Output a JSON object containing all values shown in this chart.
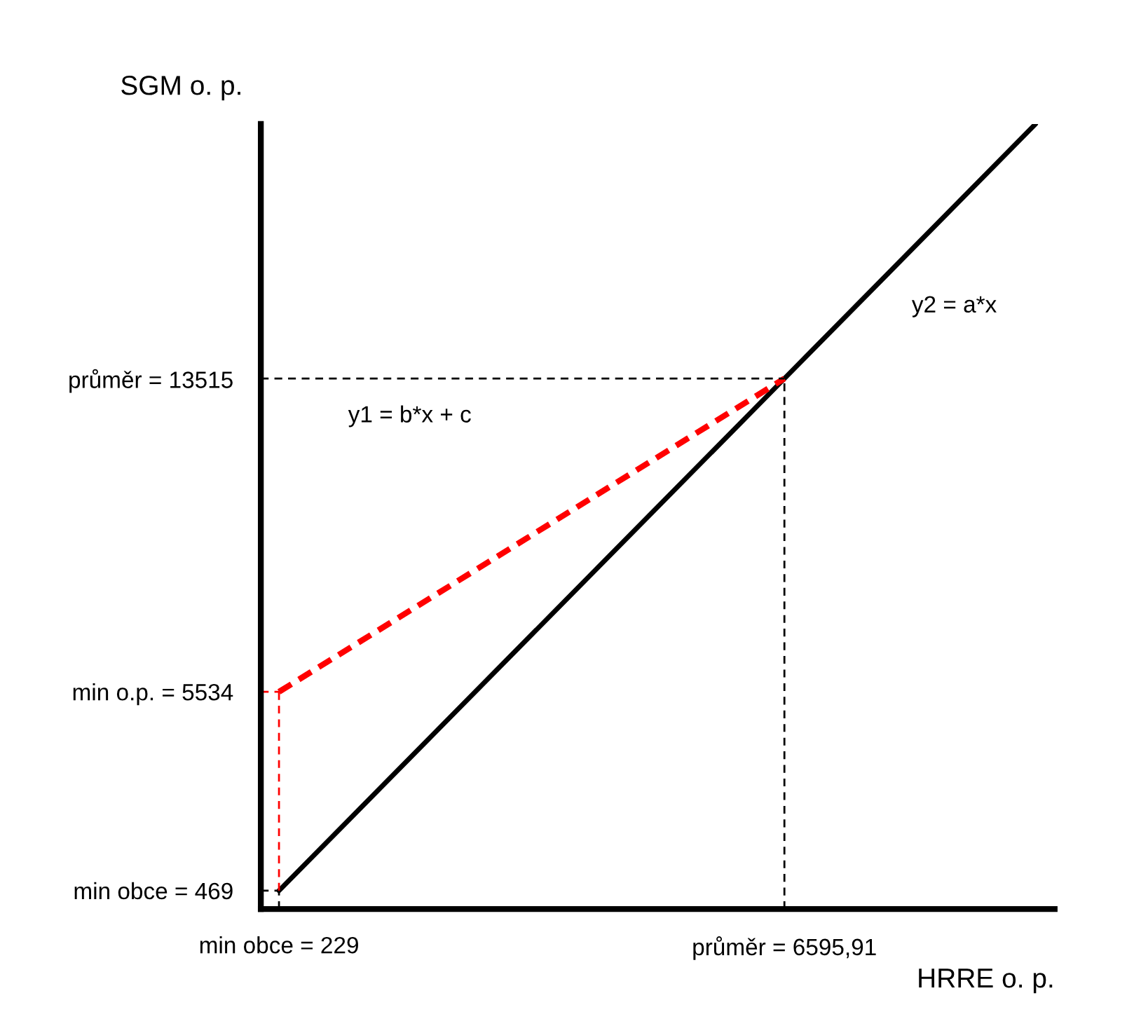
{
  "chart_data": {
    "type": "line",
    "xlabel": "HRRE o. p.",
    "ylabel": "SGM o. p.",
    "xlim": [
      0,
      10000
    ],
    "ylim": [
      0,
      20000
    ],
    "xticks": [
      {
        "value": 229,
        "label": "min obce = 229"
      },
      {
        "value": 6595.91,
        "label": "průměr = 6595,91"
      }
    ],
    "yticks": [
      {
        "value": 469,
        "label": "min obce = 469"
      },
      {
        "value": 5534,
        "label": "min o.p. = 5534"
      },
      {
        "value": 13515,
        "label": "průměr = 13515"
      }
    ],
    "series": [
      {
        "x": [
          229,
          6595.91,
          9760
        ],
        "values": [
          469,
          13515,
          20000
        ],
        "color": "#000000",
        "line_style": "solid"
      },
      {
        "x": [
          229,
          6595.91
        ],
        "values": [
          5534,
          13515
        ],
        "color": "#ff0000",
        "line_style": "dashed"
      },
      {
        "x": [
          0,
          229
        ],
        "values": [
          469,
          469
        ],
        "color": "#000000",
        "line_style": "dotted"
      },
      {
        "x": [
          229,
          229
        ],
        "values": [
          0,
          469
        ],
        "color": "#000000",
        "line_style": "dotted"
      },
      {
        "x": [
          0,
          229
        ],
        "values": [
          5534,
          5534
        ],
        "color": "#ff0000",
        "line_style": "dotted"
      },
      {
        "x": [
          229,
          229
        ],
        "values": [
          469,
          5534
        ],
        "color": "#ff0000",
        "line_style": "dotted"
      },
      {
        "x": [
          0,
          6595.91
        ],
        "values": [
          13515,
          13515
        ],
        "color": "#000000",
        "line_style": "dotted"
      },
      {
        "x": [
          6595.91,
          6595.91
        ],
        "values": [
          0,
          13515
        ],
        "color": "#000000",
        "line_style": "dotted"
      }
    ],
    "annotations": [
      "y1 = b*x + c",
      "y2 = a*x"
    ]
  }
}
